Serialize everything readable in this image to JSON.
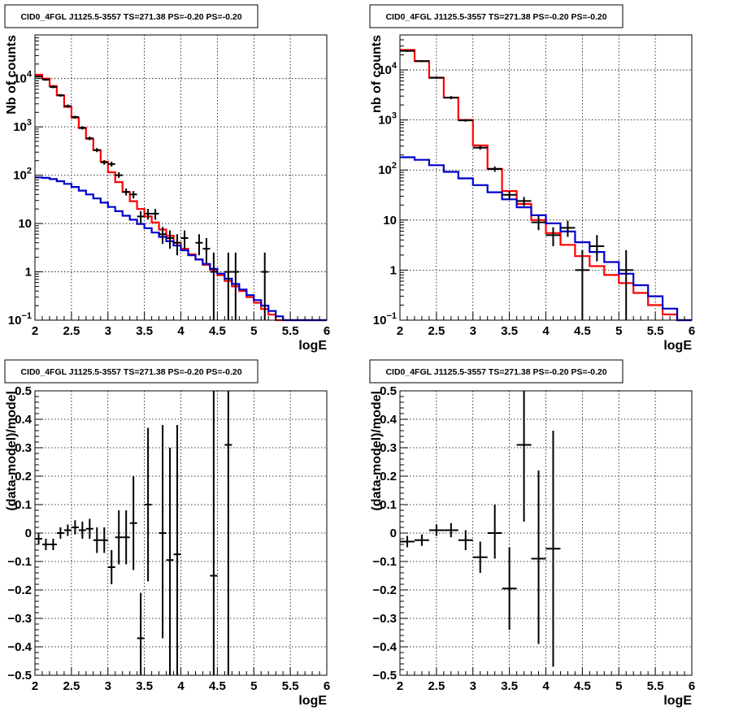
{
  "chart_data": [
    {
      "type": "line",
      "title": "CID0_4FGL J1125.5-3557 TS=271.38 PS=-0.20 PS=-0.20",
      "xlabel": "logE",
      "ylabel": "Nb of counts",
      "log_y": true,
      "xlim": [
        2,
        6
      ],
      "ylim": [
        0.1,
        80000
      ],
      "grid": true,
      "xticks": [
        "2",
        "2.5",
        "3",
        "3.5",
        "4",
        "4.5",
        "5",
        "5.5",
        "6"
      ],
      "yticks": [
        {
          "v": 0.1,
          "label": "10",
          "sup": "−1"
        },
        {
          "v": 1,
          "label": "1",
          "sup": ""
        },
        {
          "v": 10,
          "label": "10",
          "sup": ""
        },
        {
          "v": 100,
          "label": "10",
          "sup": "2"
        },
        {
          "v": 1000,
          "label": "10",
          "sup": "3"
        },
        {
          "v": 10000,
          "label": "10",
          "sup": "4"
        }
      ],
      "series": [
        {
          "color": "#ff0000",
          "style": "step",
          "edges": [
            2.0,
            2.1,
            2.2,
            2.3,
            2.4,
            2.5,
            2.6,
            2.7,
            2.8,
            2.9,
            3.0,
            3.1,
            3.2,
            3.3,
            3.4,
            3.5,
            3.6,
            3.7,
            3.8,
            3.9,
            4.0,
            4.1,
            4.2,
            4.3,
            4.4,
            4.5,
            4.6,
            4.7,
            4.8,
            4.9,
            5.0,
            5.1,
            5.2,
            5.3,
            5.4,
            5.5,
            5.6,
            5.7,
            5.8,
            5.9,
            6.0
          ],
          "values": [
            12000,
            10000,
            7000,
            4500,
            2600,
            1550,
            950,
            570,
            330,
            190,
            115,
            72,
            45,
            29,
            20,
            14,
            10.5,
            7.5,
            5.6,
            4.0,
            3.0,
            2.3,
            1.8,
            1.4,
            1.1,
            0.85,
            0.65,
            0.5,
            0.4,
            0.3,
            0.23,
            0.17,
            0.13,
            0.1,
            0.1,
            0.1,
            0.1,
            0.1,
            0.1,
            0.1
          ]
        },
        {
          "color": "#0000cc",
          "style": "step",
          "edges": [
            2.0,
            2.1,
            2.2,
            2.3,
            2.4,
            2.5,
            2.6,
            2.7,
            2.8,
            2.9,
            3.0,
            3.1,
            3.2,
            3.3,
            3.4,
            3.5,
            3.6,
            3.7,
            3.8,
            3.9,
            4.0,
            4.1,
            4.2,
            4.3,
            4.4,
            4.5,
            4.6,
            4.7,
            4.8,
            4.9,
            5.0,
            5.1,
            5.2,
            5.3,
            5.4,
            5.5,
            5.6,
            5.7,
            5.8,
            5.9,
            6.0
          ],
          "values": [
            90,
            88,
            83,
            75,
            66,
            57,
            48,
            40,
            33,
            27,
            22,
            18,
            14.5,
            12,
            9.8,
            8.0,
            6.5,
            5.3,
            4.3,
            3.5,
            2.8,
            2.2,
            1.8,
            1.45,
            1.15,
            0.92,
            0.72,
            0.56,
            0.43,
            0.33,
            0.26,
            0.2,
            0.155,
            0.12,
            0.1,
            0.1,
            0.1,
            0.1,
            0.1,
            0.1
          ]
        }
      ],
      "points": [
        {
          "x": 2.05,
          "y": 11000,
          "xerr": 0.05,
          "ylo": 10500,
          "yhi": 11500
        },
        {
          "x": 2.15,
          "y": 9500,
          "xerr": 0.05,
          "ylo": 9000,
          "yhi": 10000
        },
        {
          "x": 2.25,
          "y": 6700,
          "xerr": 0.05,
          "ylo": 6300,
          "yhi": 7100
        },
        {
          "x": 2.35,
          "y": 4500,
          "xerr": 0.05,
          "ylo": 4200,
          "yhi": 4800
        },
        {
          "x": 2.45,
          "y": 2700,
          "xerr": 0.05,
          "ylo": 2500,
          "yhi": 2900
        },
        {
          "x": 2.55,
          "y": 1600,
          "xerr": 0.05,
          "ylo": 1500,
          "yhi": 1700
        },
        {
          "x": 2.65,
          "y": 950,
          "xerr": 0.05,
          "ylo": 880,
          "yhi": 1030
        },
        {
          "x": 2.75,
          "y": 580,
          "xerr": 0.05,
          "ylo": 530,
          "yhi": 630
        },
        {
          "x": 2.85,
          "y": 330,
          "xerr": 0.05,
          "ylo": 300,
          "yhi": 365
        },
        {
          "x": 2.95,
          "y": 185,
          "xerr": 0.05,
          "ylo": 165,
          "yhi": 205
        },
        {
          "x": 3.05,
          "y": 170,
          "xerr": 0.05,
          "ylo": 150,
          "yhi": 190
        },
        {
          "x": 3.15,
          "y": 100,
          "xerr": 0.05,
          "ylo": 88,
          "yhi": 115
        },
        {
          "x": 3.25,
          "y": 45,
          "xerr": 0.05,
          "ylo": 38,
          "yhi": 53
        },
        {
          "x": 3.35,
          "y": 40,
          "xerr": 0.05,
          "ylo": 33,
          "yhi": 47
        },
        {
          "x": 3.45,
          "y": 14,
          "xerr": 0.05,
          "ylo": 10,
          "yhi": 18
        },
        {
          "x": 3.55,
          "y": 16,
          "xerr": 0.05,
          "ylo": 12,
          "yhi": 20
        },
        {
          "x": 3.65,
          "y": 16,
          "xerr": 0.05,
          "ylo": 12,
          "yhi": 20
        },
        {
          "x": 3.75,
          "y": 6,
          "xerr": 0.05,
          "ylo": 3.8,
          "yhi": 8.5
        },
        {
          "x": 3.85,
          "y": 5,
          "xerr": 0.05,
          "ylo": 3.0,
          "yhi": 7.2
        },
        {
          "x": 3.95,
          "y": 4,
          "xerr": 0.05,
          "ylo": 2.2,
          "yhi": 6.0
        },
        {
          "x": 4.05,
          "y": 5,
          "xerr": 0.05,
          "ylo": 3.0,
          "yhi": 7.2
        },
        {
          "x": 4.25,
          "y": 4,
          "xerr": 0.05,
          "ylo": 2.2,
          "yhi": 6.0
        },
        {
          "x": 4.35,
          "y": 3,
          "xerr": 0.05,
          "ylo": 1.5,
          "yhi": 5.0
        },
        {
          "x": 4.45,
          "y": 1,
          "xerr": 0.05,
          "ylo": 0.1,
          "yhi": 2.5
        },
        {
          "x": 4.65,
          "y": 1,
          "xerr": 0.05,
          "ylo": 0.1,
          "yhi": 2.5
        },
        {
          "x": 4.75,
          "y": 1,
          "xerr": 0.05,
          "ylo": 0.1,
          "yhi": 2.5
        },
        {
          "x": 5.15,
          "y": 1,
          "xerr": 0.05,
          "ylo": 0.1,
          "yhi": 2.5
        }
      ]
    },
    {
      "type": "line",
      "title": "CID0_4FGL J1125.5-3557 TS=271.38 PS=-0.20 PS=-0.20",
      "xlabel": "logE",
      "ylabel": "nb of counts",
      "log_y": true,
      "xlim": [
        2,
        6
      ],
      "ylim": [
        0.1,
        50000
      ],
      "grid": true,
      "xticks": [
        "2",
        "2.5",
        "3",
        "3.5",
        "4",
        "4.5",
        "5",
        "5.5",
        "6"
      ],
      "yticks": [
        {
          "v": 0.1,
          "label": "10",
          "sup": "−1"
        },
        {
          "v": 1,
          "label": "1",
          "sup": ""
        },
        {
          "v": 10,
          "label": "10",
          "sup": ""
        },
        {
          "v": 100,
          "label": "10",
          "sup": "2"
        },
        {
          "v": 1000,
          "label": "10",
          "sup": "3"
        },
        {
          "v": 10000,
          "label": "10",
          "sup": "4"
        }
      ],
      "series": [
        {
          "color": "#ff0000",
          "style": "step",
          "edges": [
            2.0,
            2.2,
            2.4,
            2.6,
            2.8,
            3.0,
            3.2,
            3.4,
            3.6,
            3.8,
            4.0,
            4.2,
            4.4,
            4.6,
            4.8,
            5.0,
            5.2,
            5.4,
            5.6,
            5.8,
            6.0
          ],
          "values": [
            25000,
            15000,
            7000,
            2800,
            1000,
            310,
            105,
            38,
            21,
            10,
            5.5,
            3.2,
            1.9,
            1.2,
            0.8,
            0.55,
            0.35,
            0.2,
            0.13,
            0.1
          ]
        },
        {
          "color": "#0000cc",
          "style": "step",
          "edges": [
            2.0,
            2.2,
            2.4,
            2.6,
            2.8,
            3.0,
            3.2,
            3.4,
            3.6,
            3.8,
            4.0,
            4.2,
            4.4,
            4.6,
            4.8,
            5.0,
            5.2,
            5.4,
            5.6,
            5.8,
            6.0
          ],
          "values": [
            180,
            160,
            125,
            92,
            68,
            50,
            36,
            26,
            18,
            12.5,
            8.6,
            5.9,
            3.6,
            2.3,
            1.45,
            0.85,
            0.5,
            0.3,
            0.17,
            0.1
          ]
        }
      ],
      "points": [
        {
          "x": 2.1,
          "y": 24000,
          "xerr": 0.1,
          "ylo": 23000,
          "yhi": 25000
        },
        {
          "x": 2.3,
          "y": 15000,
          "xerr": 0.1,
          "ylo": 14300,
          "yhi": 15700
        },
        {
          "x": 2.5,
          "y": 7000,
          "xerr": 0.1,
          "ylo": 6600,
          "yhi": 7400
        },
        {
          "x": 2.7,
          "y": 2800,
          "xerr": 0.1,
          "ylo": 2600,
          "yhi": 3000
        },
        {
          "x": 2.9,
          "y": 980,
          "xerr": 0.1,
          "ylo": 920,
          "yhi": 1040
        },
        {
          "x": 3.1,
          "y": 280,
          "xerr": 0.1,
          "ylo": 255,
          "yhi": 305
        },
        {
          "x": 3.3,
          "y": 105,
          "xerr": 0.1,
          "ylo": 92,
          "yhi": 118
        },
        {
          "x": 3.5,
          "y": 32,
          "xerr": 0.1,
          "ylo": 26,
          "yhi": 38
        },
        {
          "x": 3.7,
          "y": 24,
          "xerr": 0.1,
          "ylo": 19,
          "yhi": 29
        },
        {
          "x": 3.9,
          "y": 9,
          "xerr": 0.1,
          "ylo": 6.3,
          "yhi": 12
        },
        {
          "x": 4.1,
          "y": 5,
          "xerr": 0.1,
          "ylo": 3.0,
          "yhi": 7.2
        },
        {
          "x": 4.3,
          "y": 7,
          "xerr": 0.1,
          "ylo": 4.6,
          "yhi": 9.7
        },
        {
          "x": 4.5,
          "y": 1,
          "xerr": 0.1,
          "ylo": 0.1,
          "yhi": 2.5
        },
        {
          "x": 4.7,
          "y": 3,
          "xerr": 0.1,
          "ylo": 1.5,
          "yhi": 5.0
        },
        {
          "x": 5.1,
          "y": 1,
          "xerr": 0.1,
          "ylo": 0.1,
          "yhi": 2.5
        }
      ]
    },
    {
      "type": "scatter",
      "title": "CID0_4FGL J1125.5-3557 TS=271.38 PS=-0.20 PS=-0.20",
      "xlabel": "logE",
      "ylabel": "(data-model)/model",
      "log_y": false,
      "xlim": [
        2,
        6
      ],
      "ylim": [
        -0.5,
        0.5
      ],
      "grid": true,
      "xticks": [
        "2",
        "2.5",
        "3",
        "3.5",
        "4",
        "4.5",
        "5",
        "5.5",
        "6"
      ],
      "yticks": [
        {
          "v": -0.5,
          "label": "−0.5",
          "sup": ""
        },
        {
          "v": -0.4,
          "label": "−0.4",
          "sup": ""
        },
        {
          "v": -0.3,
          "label": "−0.3",
          "sup": ""
        },
        {
          "v": -0.2,
          "label": "−0.2",
          "sup": ""
        },
        {
          "v": -0.1,
          "label": "−0.1",
          "sup": ""
        },
        {
          "v": 0,
          "label": "0",
          "sup": ""
        },
        {
          "v": 0.1,
          "label": "0.1",
          "sup": ""
        },
        {
          "v": 0.2,
          "label": "0.2",
          "sup": ""
        },
        {
          "v": 0.3,
          "label": "0.3",
          "sup": ""
        },
        {
          "v": 0.4,
          "label": "0.4",
          "sup": ""
        },
        {
          "v": 0.5,
          "label": "0.5",
          "sup": ""
        }
      ],
      "series": [],
      "points": [
        {
          "x": 2.05,
          "y": -0.02,
          "xerr": 0.05,
          "ylo": -0.04,
          "yhi": 0.0
        },
        {
          "x": 2.15,
          "y": -0.04,
          "xerr": 0.05,
          "ylo": -0.06,
          "yhi": -0.02
        },
        {
          "x": 2.25,
          "y": -0.04,
          "xerr": 0.05,
          "ylo": -0.06,
          "yhi": -0.02
        },
        {
          "x": 2.35,
          "y": 0.0,
          "xerr": 0.05,
          "ylo": -0.02,
          "yhi": 0.02
        },
        {
          "x": 2.45,
          "y": 0.01,
          "xerr": 0.05,
          "ylo": -0.01,
          "yhi": 0.03
        },
        {
          "x": 2.55,
          "y": 0.02,
          "xerr": 0.05,
          "ylo": -0.005,
          "yhi": 0.045
        },
        {
          "x": 2.65,
          "y": 0.01,
          "xerr": 0.05,
          "ylo": -0.02,
          "yhi": 0.04
        },
        {
          "x": 2.75,
          "y": 0.015,
          "xerr": 0.05,
          "ylo": -0.02,
          "yhi": 0.05
        },
        {
          "x": 2.85,
          "y": -0.025,
          "xerr": 0.05,
          "ylo": -0.07,
          "yhi": 0.02
        },
        {
          "x": 2.95,
          "y": -0.025,
          "xerr": 0.05,
          "ylo": -0.07,
          "yhi": 0.02
        },
        {
          "x": 3.05,
          "y": -0.12,
          "xerr": 0.05,
          "ylo": -0.18,
          "yhi": -0.06
        },
        {
          "x": 3.15,
          "y": -0.015,
          "xerr": 0.05,
          "ylo": -0.11,
          "yhi": 0.08
        },
        {
          "x": 3.25,
          "y": -0.015,
          "xerr": 0.05,
          "ylo": -0.11,
          "yhi": 0.08
        },
        {
          "x": 3.35,
          "y": 0.035,
          "xerr": 0.05,
          "ylo": -0.13,
          "yhi": 0.2
        },
        {
          "x": 3.45,
          "y": -0.37,
          "xerr": 0.05,
          "ylo": -0.5,
          "yhi": -0.21
        },
        {
          "x": 3.55,
          "y": 0.1,
          "xerr": 0.05,
          "ylo": -0.17,
          "yhi": 0.37
        },
        {
          "x": 3.75,
          "y": 0.0,
          "xerr": 0.05,
          "ylo": -0.37,
          "yhi": 0.38
        },
        {
          "x": 3.85,
          "y": -0.095,
          "xerr": 0.05,
          "ylo": -0.5,
          "yhi": 0.3
        },
        {
          "x": 3.95,
          "y": -0.075,
          "xerr": 0.05,
          "ylo": -0.5,
          "yhi": 0.38
        },
        {
          "x": 4.45,
          "y": -0.15,
          "xerr": 0.05,
          "ylo": -0.5,
          "yhi": 0.5
        },
        {
          "x": 4.65,
          "y": 0.31,
          "xerr": 0.05,
          "ylo": -0.5,
          "yhi": 0.5
        }
      ]
    },
    {
      "type": "scatter",
      "title": "CID0_4FGL J1125.5-3557 TS=271.38 PS=-0.20 PS=-0.20",
      "xlabel": "logE",
      "ylabel": "(data-model)/model",
      "log_y": false,
      "xlim": [
        2,
        6
      ],
      "ylim": [
        -0.5,
        0.5
      ],
      "grid": true,
      "xticks": [
        "2",
        "2.5",
        "3",
        "3.5",
        "4",
        "4.5",
        "5",
        "5.5",
        "6"
      ],
      "yticks": [
        {
          "v": -0.5,
          "label": "−0.5",
          "sup": ""
        },
        {
          "v": -0.4,
          "label": "−0.4",
          "sup": ""
        },
        {
          "v": -0.3,
          "label": "−0.3",
          "sup": ""
        },
        {
          "v": -0.2,
          "label": "−0.2",
          "sup": ""
        },
        {
          "v": -0.1,
          "label": "−0.1",
          "sup": ""
        },
        {
          "v": 0,
          "label": "0",
          "sup": ""
        },
        {
          "v": 0.1,
          "label": "0.1",
          "sup": ""
        },
        {
          "v": 0.2,
          "label": "0.2",
          "sup": ""
        },
        {
          "v": 0.3,
          "label": "0.3",
          "sup": ""
        },
        {
          "v": 0.4,
          "label": "0.4",
          "sup": ""
        },
        {
          "v": 0.5,
          "label": "0.5",
          "sup": ""
        }
      ],
      "series": [],
      "points": [
        {
          "x": 2.1,
          "y": -0.03,
          "xerr": 0.1,
          "ylo": -0.05,
          "yhi": -0.01
        },
        {
          "x": 2.3,
          "y": -0.025,
          "xerr": 0.1,
          "ylo": -0.045,
          "yhi": -0.005
        },
        {
          "x": 2.5,
          "y": 0.01,
          "xerr": 0.1,
          "ylo": -0.01,
          "yhi": 0.03
        },
        {
          "x": 2.7,
          "y": 0.01,
          "xerr": 0.1,
          "ylo": -0.015,
          "yhi": 0.035
        },
        {
          "x": 2.9,
          "y": -0.025,
          "xerr": 0.1,
          "ylo": -0.06,
          "yhi": 0.01
        },
        {
          "x": 3.1,
          "y": -0.085,
          "xerr": 0.1,
          "ylo": -0.14,
          "yhi": -0.03
        },
        {
          "x": 3.3,
          "y": 0.0,
          "xerr": 0.1,
          "ylo": -0.09,
          "yhi": 0.1
        },
        {
          "x": 3.5,
          "y": -0.195,
          "xerr": 0.1,
          "ylo": -0.34,
          "yhi": -0.05
        },
        {
          "x": 3.7,
          "y": 0.31,
          "xerr": 0.1,
          "ylo": 0.04,
          "yhi": 0.5
        },
        {
          "x": 3.9,
          "y": -0.09,
          "xerr": 0.1,
          "ylo": -0.39,
          "yhi": 0.22
        },
        {
          "x": 4.1,
          "y": -0.055,
          "xerr": 0.1,
          "ylo": -0.47,
          "yhi": 0.36
        }
      ]
    }
  ]
}
